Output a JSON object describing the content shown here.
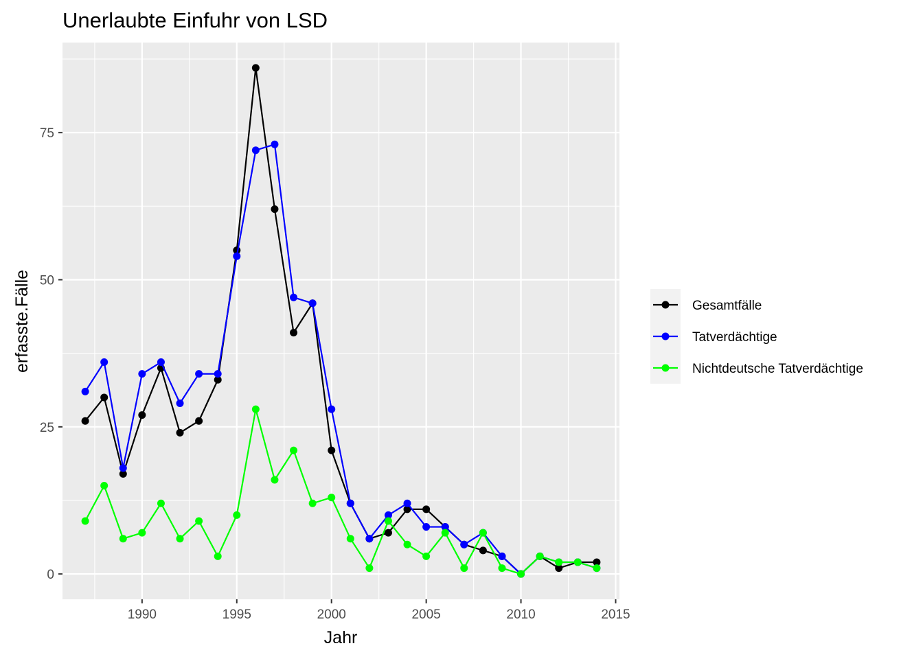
{
  "chart_data": {
    "type": "line",
    "title": "Unerlaubte Einfuhr von LSD",
    "xlabel": "Jahr",
    "ylabel": "erfasste.Fälle",
    "xlim": [
      1985.8,
      2015.2
    ],
    "ylim": [
      -4.3,
      90.3
    ],
    "x_ticks": [
      1990,
      1995,
      2000,
      2005,
      2010,
      2015
    ],
    "y_ticks": [
      0,
      25,
      50,
      75
    ],
    "grid": true,
    "legend_position": "right",
    "x": [
      1987,
      1988,
      1989,
      1990,
      1991,
      1992,
      1993,
      1994,
      1995,
      1996,
      1997,
      1998,
      1999,
      2000,
      2001,
      2002,
      2003,
      2004,
      2005,
      2006,
      2007,
      2008,
      2009,
      2010,
      2011,
      2012,
      2013,
      2014
    ],
    "series": [
      {
        "name": "Gesamtfälle",
        "color": "#000000",
        "values": [
          26,
          30,
          17,
          27,
          35,
          24,
          26,
          33,
          55,
          86,
          62,
          41,
          46,
          21,
          12,
          6,
          7,
          11,
          11,
          8,
          5,
          4,
          3,
          0,
          3,
          1,
          2,
          2
        ]
      },
      {
        "name": "Tatverdächtige",
        "color": "#0000ff",
        "values": [
          31,
          36,
          18,
          34,
          36,
          29,
          34,
          34,
          54,
          72,
          73,
          47,
          46,
          28,
          12,
          6,
          10,
          12,
          8,
          8,
          5,
          7,
          3,
          0,
          3,
          2,
          2,
          1
        ]
      },
      {
        "name": "Nichtdeutsche Tatverdächtige",
        "color": "#00ff00",
        "values": [
          9,
          15,
          6,
          7,
          12,
          6,
          9,
          3,
          10,
          28,
          16,
          21,
          12,
          13,
          6,
          1,
          9,
          5,
          3,
          7,
          1,
          7,
          1,
          0,
          3,
          2,
          2,
          1
        ]
      }
    ]
  }
}
